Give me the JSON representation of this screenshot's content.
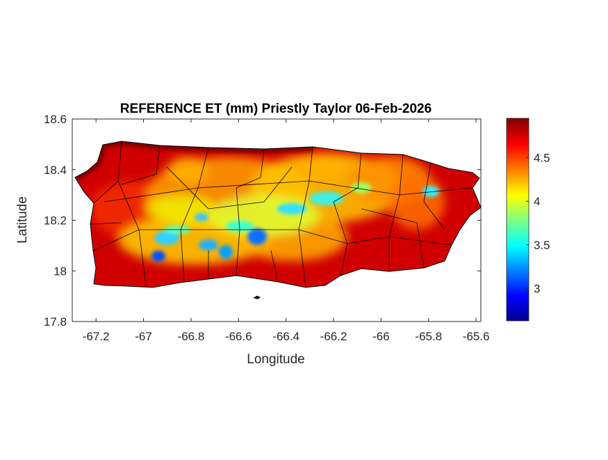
{
  "chart_data": {
    "type": "heatmap",
    "title": "REFERENCE ET (mm) Priestly Taylor 06-Feb-2026",
    "xlabel": "Longitude",
    "ylabel": "Latitude",
    "xlim": [
      -67.3,
      -65.58
    ],
    "ylim": [
      17.8,
      18.6
    ],
    "xticks": [
      -67.2,
      -67,
      -66.8,
      -66.6,
      -66.4,
      -66.2,
      -66,
      -65.8,
      -65.6
    ],
    "xtick_labels": [
      "-67.2",
      "-67",
      "-66.8",
      "-66.6",
      "-66.4",
      "-66.2",
      "-66",
      "-65.8",
      "-65.6"
    ],
    "yticks": [
      17.8,
      18,
      18.2,
      18.4,
      18.6
    ],
    "ytick_labels": [
      "17.8",
      "18",
      "18.2",
      "18.4",
      "18.6"
    ],
    "colorbar": {
      "colormap": "jet",
      "clim": [
        2.63,
        4.95
      ],
      "ticks": [
        3,
        3.5,
        4,
        4.5
      ],
      "tick_labels": [
        "3",
        "3.5",
        "4",
        "4.5"
      ]
    },
    "grid": false,
    "overlay": "municipality boundaries (black lines)",
    "low_value_areas": [
      {
        "lon": -66.9,
        "lat": 18.1,
        "value": 3.1
      },
      {
        "lon": -66.72,
        "lat": 18.09,
        "value": 3.3
      },
      {
        "lon": -66.52,
        "lat": 18.13,
        "value": 3.2
      },
      {
        "lon": -66.62,
        "lat": 18.2,
        "value": 3.5
      },
      {
        "lon": -66.35,
        "lat": 18.26,
        "value": 3.6
      },
      {
        "lon": -66.2,
        "lat": 18.29,
        "value": 3.7
      },
      {
        "lon": -65.8,
        "lat": 18.32,
        "value": 3.6
      }
    ]
  }
}
